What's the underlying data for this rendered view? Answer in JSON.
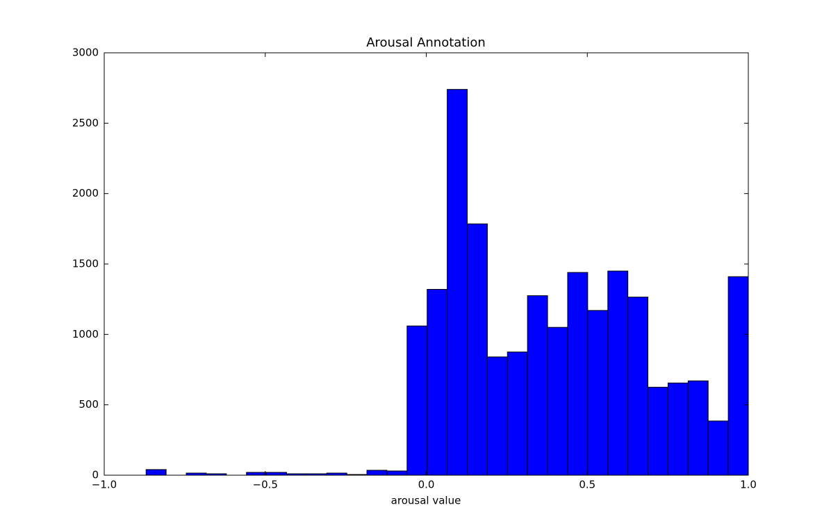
{
  "chart_data": {
    "type": "histogram",
    "title": "Arousal Annotation",
    "x_label": "arousal value",
    "bins": [
      -0.87,
      -0.8077,
      -0.7453,
      -0.683,
      -0.6207,
      -0.5583,
      -0.496,
      -0.4337,
      -0.3713,
      -0.309,
      -0.2467,
      -0.1843,
      -0.122,
      -0.0597,
      0.0027,
      0.065,
      0.1273,
      0.1897,
      0.252,
      0.3143,
      0.3767,
      0.439,
      0.5013,
      0.5637,
      0.626,
      0.6883,
      0.7507,
      0.813,
      0.8753,
      0.9377,
      1.0
    ],
    "values": [
      40,
      0,
      15,
      10,
      0,
      20,
      20,
      10,
      10,
      15,
      5,
      35,
      30,
      1060,
      1320,
      2740,
      1785,
      840,
      875,
      1275,
      1050,
      1440,
      1170,
      1450,
      1265,
      625,
      655,
      670,
      385,
      1410
    ],
    "color": "#0000ff",
    "xlim": [
      -1.0,
      1.0
    ],
    "xticks": [
      {
        "value": -1.0,
        "label": "−1.0"
      },
      {
        "value": -0.5,
        "label": "−0.5"
      },
      {
        "value": 0.0,
        "label": "0.0"
      },
      {
        "value": 0.5,
        "label": "0.5"
      },
      {
        "value": 1.0,
        "label": "1.0"
      }
    ],
    "ylim": [
      0,
      3000
    ],
    "yticks": [
      0,
      500,
      1000,
      1500,
      2000,
      2500,
      3000
    ],
    "grid": false
  }
}
